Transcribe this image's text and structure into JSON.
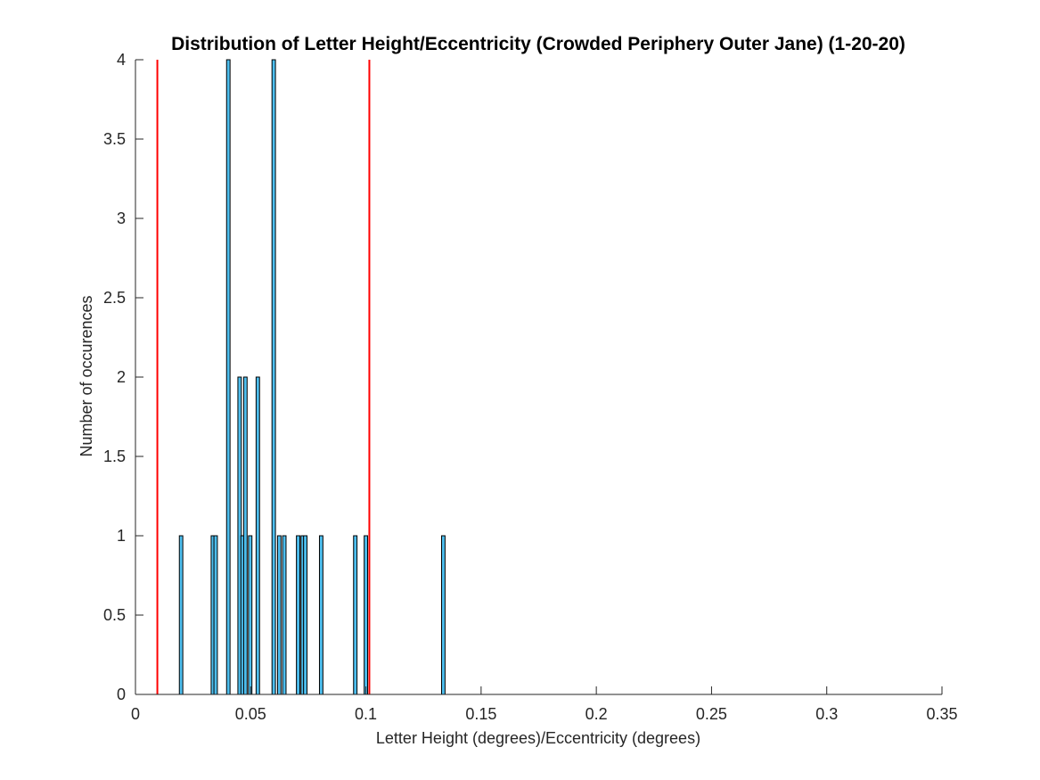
{
  "chart_data": {
    "type": "bar",
    "title": "Distribution of Letter Height/Eccentricity (Crowded Periphery Outer Jane) (1-20-20)",
    "xlabel": "Letter Height (degrees)/Eccentricity (degrees)",
    "ylabel": "Number of occurences",
    "xlim": [
      0,
      0.35
    ],
    "ylim": [
      0,
      4
    ],
    "xticks": [
      0,
      0.05,
      0.1,
      0.15,
      0.2,
      0.25,
      0.3,
      0.35
    ],
    "xtick_labels": [
      "0",
      "0.05",
      "0.1",
      "0.15",
      "0.2",
      "0.25",
      "0.3",
      "0.35"
    ],
    "yticks": [
      0,
      0.5,
      1,
      1.5,
      2,
      2.5,
      3,
      3.5,
      4
    ],
    "ytick_labels": [
      "0",
      "0.5",
      "1",
      "1.5",
      "2",
      "2.5",
      "3",
      "3.5",
      "4"
    ],
    "grid": false,
    "bin_width": 0.0015,
    "bar_color": "#4DBEEE",
    "bar_edge_color": "#000000",
    "reference_line_color": "#FF0000",
    "reference_lines": [
      0.0095,
      0.1015
    ],
    "bars": [
      {
        "x": 0.0198,
        "value": 1
      },
      {
        "x": 0.0336,
        "value": 1
      },
      {
        "x": 0.0348,
        "value": 1
      },
      {
        "x": 0.0403,
        "value": 4
      },
      {
        "x": 0.0452,
        "value": 2
      },
      {
        "x": 0.0465,
        "value": 1
      },
      {
        "x": 0.0477,
        "value": 2
      },
      {
        "x": 0.0498,
        "value": 1
      },
      {
        "x": 0.0531,
        "value": 2
      },
      {
        "x": 0.06,
        "value": 4
      },
      {
        "x": 0.0624,
        "value": 1
      },
      {
        "x": 0.0646,
        "value": 1
      },
      {
        "x": 0.0706,
        "value": 1
      },
      {
        "x": 0.0726,
        "value": 1
      },
      {
        "x": 0.0737,
        "value": 1
      },
      {
        "x": 0.0806,
        "value": 1
      },
      {
        "x": 0.0954,
        "value": 1
      },
      {
        "x": 0.1,
        "value": 1
      },
      {
        "x": 0.1336,
        "value": 1
      }
    ]
  }
}
